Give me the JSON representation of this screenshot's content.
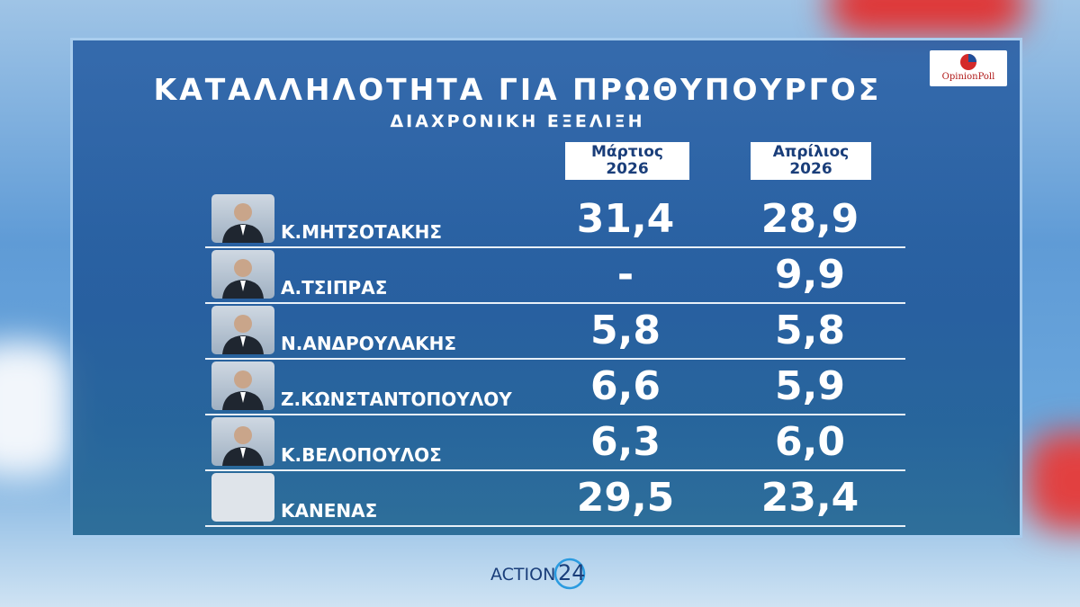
{
  "header": {
    "title": "ΚΑΤΑΛΛΗΛΟΤΗΤΑ ΓΙΑ ΠΡΩΘΥΠΟΥΡΓΟΣ",
    "subtitle": "ΔΙΑΧΡΟΝΙΚΗ ΕΞΕΛΙΞΗ",
    "logo": "OpinionPoll"
  },
  "table": {
    "columns": [
      [
        "Μάρτιος",
        "2026"
      ],
      [
        "Απρίλιος",
        "2026"
      ]
    ],
    "rows": [
      [
        "Κ.ΜΗΤΣΟΤΑΚΗΣ",
        "31,4",
        "28,9"
      ],
      [
        "Α.ΤΣΙΠΡΑΣ",
        "-",
        "9,9"
      ],
      [
        "Ν.ΑΝΔΡΟΥΛΑΚΗΣ",
        "5,8",
        "5,8"
      ],
      [
        "Ζ.ΚΩΝΣΤΑΝΤΟΠΟΥΛΟΥ",
        "6,6",
        "5,9"
      ],
      [
        "Κ.ΒΕΛΟΠΟΥΛΟΣ",
        "6,3",
        "6,0"
      ],
      [
        "ΚΑΝΕΝΑΣ",
        "29,5",
        "23,4"
      ]
    ]
  },
  "footer": {
    "channel": "ACTION",
    "number": "24"
  }
}
